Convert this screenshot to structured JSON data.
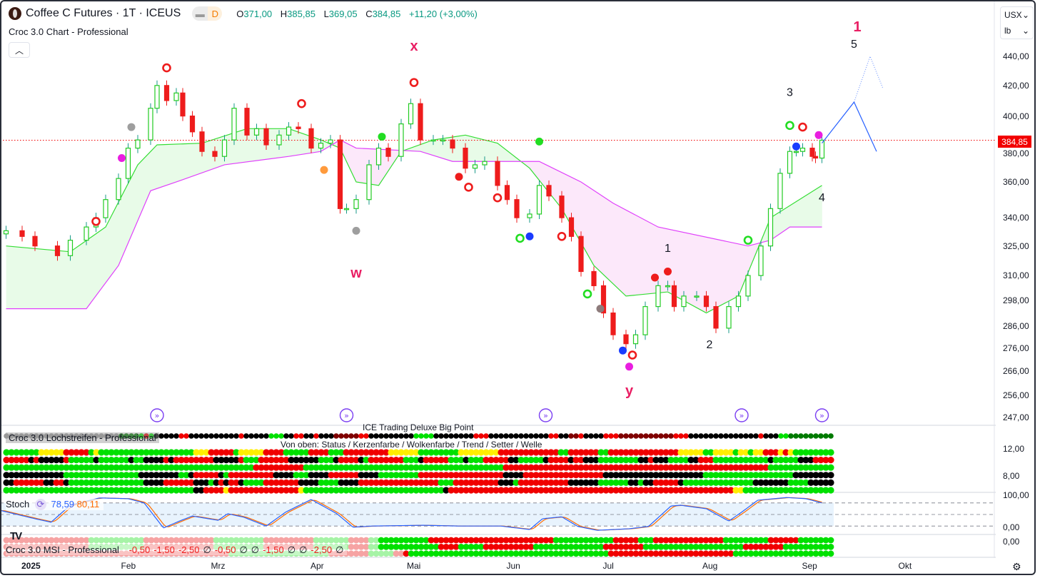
{
  "header": {
    "symbol": "Coffee C Futures · 1T · ICEUS",
    "badge": "D",
    "ohlc": {
      "o_label": "O",
      "o": "371,00",
      "h_label": "H",
      "h": "385,85",
      "l_label": "L",
      "l": "369,05",
      "c_label": "C",
      "c": "384,85",
      "change": "+11,20 (+3,00%)"
    },
    "indicator": "Croc 3.0 Chart - Professional",
    "collapse_icon": "chevron-up-icon"
  },
  "axis": {
    "currency": "USX",
    "unit": "lb",
    "price_ticks": [
      {
        "v": 440,
        "t": "440,00"
      },
      {
        "v": 420,
        "t": "420,00"
      },
      {
        "v": 400,
        "t": "400,00"
      },
      {
        "v": 380,
        "t": "380,00"
      },
      {
        "v": 360,
        "t": "360,00"
      },
      {
        "v": 340,
        "t": "340,00"
      },
      {
        "v": 325,
        "t": "325,00"
      },
      {
        "v": 310,
        "t": "310,00"
      },
      {
        "v": 298,
        "t": "298,00"
      },
      {
        "v": 286,
        "t": "286,00"
      },
      {
        "v": 276,
        "t": "276,00"
      },
      {
        "v": 266,
        "t": "266,00"
      },
      {
        "v": 256,
        "t": "256,00"
      },
      {
        "v": 247,
        "t": "247,00"
      }
    ],
    "current_price": "384,85",
    "current_price_value": 384.85,
    "loch_ticks": [
      "12,00",
      "8,00"
    ],
    "stoch_ticks": [
      "100,00",
      "0,00"
    ],
    "msi_ticks": [
      "0,00"
    ],
    "date_labels": [
      {
        "d": "2025-01-01",
        "t": "2025"
      },
      {
        "d": "2025-02-01",
        "t": "Feb"
      },
      {
        "d": "2025-03-01",
        "t": "Mrz"
      },
      {
        "d": "2025-04-01",
        "t": "Apr"
      },
      {
        "d": "2025-05-01",
        "t": "Mai"
      },
      {
        "d": "2025-06-01",
        "t": "Jun"
      },
      {
        "d": "2025-07-01",
        "t": "Jul"
      },
      {
        "d": "2025-08-01",
        "t": "Aug"
      },
      {
        "d": "2025-09-01",
        "t": "Sep"
      },
      {
        "d": "2025-10-01",
        "t": "Okt"
      }
    ]
  },
  "colors": {
    "up": "#22cc22",
    "down": "#ee1c1c",
    "wick_up": "#1a9a8a",
    "cloud_green": "#e8fbe8",
    "cloud_pink": "#fce8fa",
    "green_line": "#33dd33",
    "magenta_line": "#e040fb",
    "stoch_k": "#2962ff",
    "stoch_d": "#ff6d00",
    "accent_wave": "#e91e63",
    "projection": "#2962ff"
  },
  "chart_data": {
    "type": "candlestick",
    "yscale": "log",
    "ylim": [
      247,
      440
    ],
    "closes": [
      [
        "2024-12-25",
        333
      ],
      [
        "2024-12-30",
        330
      ],
      [
        "2025-01-03",
        325
      ],
      [
        "2025-01-10",
        320
      ],
      [
        "2025-01-14",
        328
      ],
      [
        "2025-01-19",
        335
      ],
      [
        "2025-01-22",
        340
      ],
      [
        "2025-01-25",
        350
      ],
      [
        "2025-01-29",
        362
      ],
      [
        "2025-02-01",
        380
      ],
      [
        "2025-02-04",
        385
      ],
      [
        "2025-02-08",
        405
      ],
      [
        "2025-02-10",
        420
      ],
      [
        "2025-02-13",
        410
      ],
      [
        "2025-02-16",
        415
      ],
      [
        "2025-02-18",
        400
      ],
      [
        "2025-02-21",
        390
      ],
      [
        "2025-02-24",
        378
      ],
      [
        "2025-02-28",
        375
      ],
      [
        "2025-03-03",
        385
      ],
      [
        "2025-03-06",
        405
      ],
      [
        "2025-03-10",
        388
      ],
      [
        "2025-03-13",
        392
      ],
      [
        "2025-03-16",
        382
      ],
      [
        "2025-03-20",
        388
      ],
      [
        "2025-03-23",
        393
      ],
      [
        "2025-03-26",
        392
      ],
      [
        "2025-03-30",
        380
      ],
      [
        "2025-04-02",
        383
      ],
      [
        "2025-04-05",
        385
      ],
      [
        "2025-04-08",
        345
      ],
      [
        "2025-04-10",
        345
      ],
      [
        "2025-04-13",
        350
      ],
      [
        "2025-04-17",
        370
      ],
      [
        "2025-04-20",
        380
      ],
      [
        "2025-04-23",
        375
      ],
      [
        "2025-04-27",
        395
      ],
      [
        "2025-04-30",
        408
      ],
      [
        "2025-05-03",
        385
      ],
      [
        "2025-05-07",
        385
      ],
      [
        "2025-05-10",
        385
      ],
      [
        "2025-05-13",
        380
      ],
      [
        "2025-05-17",
        368
      ],
      [
        "2025-05-20",
        370
      ],
      [
        "2025-05-23",
        372
      ],
      [
        "2025-05-27",
        358
      ],
      [
        "2025-05-30",
        350
      ],
      [
        "2025-06-02",
        340
      ],
      [
        "2025-06-06",
        342
      ],
      [
        "2025-06-09",
        358
      ],
      [
        "2025-06-12",
        352
      ],
      [
        "2025-06-16",
        340
      ],
      [
        "2025-06-19",
        330
      ],
      [
        "2025-06-22",
        312
      ],
      [
        "2025-06-26",
        305
      ],
      [
        "2025-06-29",
        292
      ],
      [
        "2025-07-02",
        282
      ],
      [
        "2025-07-06",
        278
      ],
      [
        "2025-07-09",
        282
      ],
      [
        "2025-07-12",
        295
      ],
      [
        "2025-07-16",
        305
      ],
      [
        "2025-07-19",
        305
      ],
      [
        "2025-07-21",
        295
      ],
      [
        "2025-07-24",
        300
      ],
      [
        "2025-07-28",
        300
      ],
      [
        "2025-07-31",
        295
      ],
      [
        "2025-08-03",
        285
      ],
      [
        "2025-08-07",
        295
      ],
      [
        "2025-08-10",
        300
      ],
      [
        "2025-08-13",
        310
      ],
      [
        "2025-08-17",
        325
      ],
      [
        "2025-08-20",
        345
      ],
      [
        "2025-08-23",
        365
      ],
      [
        "2025-08-26",
        378
      ],
      [
        "2025-08-28",
        378
      ],
      [
        "2025-08-30",
        380
      ],
      [
        "2025-09-02",
        375
      ],
      [
        "2025-09-03",
        374
      ],
      [
        "2025-09-05",
        384.85
      ]
    ],
    "green_line": [
      [
        "2024-12-25",
        325
      ],
      [
        "2025-01-14",
        322
      ],
      [
        "2025-01-25",
        335
      ],
      [
        "2025-02-04",
        370
      ],
      [
        "2025-02-10",
        382
      ],
      [
        "2025-02-24",
        383
      ],
      [
        "2025-03-10",
        392
      ],
      [
        "2025-03-23",
        392
      ],
      [
        "2025-04-02",
        385
      ],
      [
        "2025-04-08",
        380
      ],
      [
        "2025-04-13",
        360
      ],
      [
        "2025-04-20",
        358
      ],
      [
        "2025-04-27",
        378
      ],
      [
        "2025-05-07",
        385
      ],
      [
        "2025-05-17",
        388
      ],
      [
        "2025-05-27",
        383
      ],
      [
        "2025-06-06",
        368
      ],
      [
        "2025-06-16",
        345
      ],
      [
        "2025-06-26",
        315
      ],
      [
        "2025-07-06",
        300
      ],
      [
        "2025-07-19",
        302
      ],
      [
        "2025-07-31",
        292
      ],
      [
        "2025-08-10",
        300
      ],
      [
        "2025-08-20",
        340
      ],
      [
        "2025-09-05",
        358
      ]
    ],
    "magenta_line": [
      [
        "2024-12-25",
        294
      ],
      [
        "2025-01-19",
        294
      ],
      [
        "2025-01-29",
        315
      ],
      [
        "2025-02-08",
        355
      ],
      [
        "2025-02-16",
        360
      ],
      [
        "2025-03-03",
        370
      ],
      [
        "2025-03-23",
        375
      ],
      [
        "2025-04-02",
        378
      ],
      [
        "2025-04-08",
        385
      ],
      [
        "2025-04-13",
        380
      ],
      [
        "2025-05-03",
        378
      ],
      [
        "2025-05-13",
        372
      ],
      [
        "2025-06-09",
        372
      ],
      [
        "2025-06-22",
        360
      ],
      [
        "2025-07-02",
        348
      ],
      [
        "2025-07-16",
        335
      ],
      [
        "2025-08-13",
        325
      ],
      [
        "2025-08-20",
        328
      ],
      [
        "2025-08-26",
        335
      ],
      [
        "2025-09-05",
        335
      ]
    ],
    "markers": [
      {
        "d": "2025-01-22",
        "p": 338,
        "type": "ring",
        "color": "#ee1c1c"
      },
      {
        "d": "2025-01-30",
        "p": 374,
        "type": "dot",
        "color": "#e91ee0"
      },
      {
        "d": "2025-02-02",
        "p": 393,
        "type": "dot",
        "color": "#9e9e9e"
      },
      {
        "d": "2025-02-13",
        "p": 432,
        "type": "ring",
        "color": "#ee1c1c"
      },
      {
        "d": "2025-03-27",
        "p": 408,
        "type": "ring",
        "color": "#ee1c1c"
      },
      {
        "d": "2025-04-03",
        "p": 367,
        "type": "dot",
        "color": "#ff9a3c"
      },
      {
        "d": "2025-04-13",
        "p": 333,
        "type": "dot",
        "color": "#9e9e9e"
      },
      {
        "d": "2025-04-21",
        "p": 387,
        "type": "dot",
        "color": "#22dd22"
      },
      {
        "d": "2025-05-01",
        "p": 422,
        "type": "ring",
        "color": "#ee1c1c"
      },
      {
        "d": "2025-05-15",
        "p": 363,
        "type": "dot",
        "color": "#ee1c1c"
      },
      {
        "d": "2025-05-18",
        "p": 357,
        "type": "ring",
        "color": "#ee1c1c"
      },
      {
        "d": "2025-05-27",
        "p": 351,
        "type": "ring",
        "color": "#ee1c1c"
      },
      {
        "d": "2025-06-03",
        "p": 329,
        "type": "ring",
        "color": "#22dd22"
      },
      {
        "d": "2025-06-06",
        "p": 330,
        "type": "dot",
        "color": "#1a3cff"
      },
      {
        "d": "2025-06-09",
        "p": 384,
        "type": "dot",
        "color": "#22dd22"
      },
      {
        "d": "2025-06-16",
        "p": 330,
        "type": "ring",
        "color": "#ee1c1c"
      },
      {
        "d": "2025-06-24",
        "p": 301,
        "type": "ring",
        "color": "#22dd22"
      },
      {
        "d": "2025-06-28",
        "p": 294,
        "type": "dot",
        "color": "#8d7b7b"
      },
      {
        "d": "2025-07-05",
        "p": 275,
        "type": "dot",
        "color": "#1a3cff"
      },
      {
        "d": "2025-07-07",
        "p": 268,
        "type": "dot",
        "color": "#e91ee0"
      },
      {
        "d": "2025-07-08",
        "p": 273,
        "type": "ring",
        "color": "#ee1c1c"
      },
      {
        "d": "2025-07-15",
        "p": 309,
        "type": "dot",
        "color": "#ee1c1c"
      },
      {
        "d": "2025-07-19",
        "p": 312,
        "type": "dot",
        "color": "#ee1c1c"
      },
      {
        "d": "2025-08-13",
        "p": 328,
        "type": "ring",
        "color": "#22dd22"
      },
      {
        "d": "2025-08-26",
        "p": 394,
        "type": "ring",
        "color": "#22dd22"
      },
      {
        "d": "2025-08-28",
        "p": 381,
        "type": "dot",
        "color": "#1a3cff"
      },
      {
        "d": "2025-08-30",
        "p": 393,
        "type": "ring",
        "color": "#ee1c1c"
      },
      {
        "d": "2025-09-04",
        "p": 388,
        "type": "dot",
        "color": "#e91ee0"
      }
    ],
    "wave_labels": [
      {
        "t": "x",
        "d": "2025-05-01",
        "p": 444,
        "color": "#e91e63"
      },
      {
        "t": "w",
        "d": "2025-04-13",
        "p": 309,
        "color": "#e91e63"
      },
      {
        "t": "y",
        "d": "2025-07-07",
        "p": 256,
        "color": "#e91e63"
      },
      {
        "t": "1",
        "d": "2025-09-16",
        "p": 458,
        "color": "#e91e63"
      },
      {
        "t": "5",
        "d": "2025-09-15",
        "p": 446,
        "color": "#131722"
      },
      {
        "t": "3",
        "d": "2025-08-26",
        "p": 413,
        "color": "#131722"
      },
      {
        "t": "4",
        "d": "2025-09-05",
        "p": 349,
        "color": "#131722"
      },
      {
        "t": "1",
        "d": "2025-07-19",
        "p": 322,
        "color": "#131722"
      },
      {
        "t": "2",
        "d": "2025-08-01",
        "p": 276,
        "color": "#131722"
      }
    ],
    "projection_solid": [
      [
        "2025-09-05",
        383
      ],
      [
        "2025-09-15",
        409
      ],
      [
        "2025-09-22",
        378
      ]
    ],
    "projection_dotted": [
      [
        "2025-09-15",
        409
      ],
      [
        "2025-09-20",
        440
      ],
      [
        "2025-09-24",
        418
      ]
    ],
    "events": [
      "2025-02-10",
      "2025-04-10",
      "2025-06-11",
      "2025-08-11",
      "2025-09-05"
    ],
    "stoch_k": [
      [
        "2024-12-23",
        61
      ],
      [
        "2025-01-03",
        39
      ],
      [
        "2025-01-08",
        30
      ],
      [
        "2025-01-14",
        74
      ],
      [
        "2025-01-23",
        93
      ],
      [
        "2025-02-01",
        91
      ],
      [
        "2025-02-06",
        80
      ],
      [
        "2025-02-12",
        15
      ],
      [
        "2025-02-17",
        33
      ],
      [
        "2025-02-21",
        46
      ],
      [
        "2025-02-26",
        39
      ],
      [
        "2025-03-01",
        35
      ],
      [
        "2025-03-04",
        52
      ],
      [
        "2025-03-09",
        43
      ],
      [
        "2025-03-16",
        20
      ],
      [
        "2025-03-22",
        56
      ],
      [
        "2025-03-30",
        89
      ],
      [
        "2025-04-07",
        52
      ],
      [
        "2025-04-12",
        17
      ],
      [
        "2025-04-18",
        20
      ],
      [
        "2025-05-04",
        22
      ],
      [
        "2025-05-15",
        20
      ],
      [
        "2025-05-28",
        20
      ],
      [
        "2025-06-06",
        11
      ],
      [
        "2025-06-10",
        39
      ],
      [
        "2025-06-16",
        44
      ],
      [
        "2025-06-21",
        19
      ],
      [
        "2025-06-27",
        9
      ],
      [
        "2025-07-07",
        13
      ],
      [
        "2025-07-13",
        19
      ],
      [
        "2025-07-20",
        72
      ],
      [
        "2025-07-23",
        74
      ],
      [
        "2025-07-31",
        65
      ],
      [
        "2025-08-07",
        33
      ],
      [
        "2025-08-11",
        56
      ],
      [
        "2025-08-16",
        87
      ],
      [
        "2025-08-25",
        94
      ],
      [
        "2025-08-31",
        91
      ],
      [
        "2025-09-05",
        80
      ]
    ],
    "stoch_levels": [
      80,
      50,
      20
    ]
  },
  "loch": {
    "title_top": "ICE Trading Deluxe Big Point",
    "title": "Croc 3.0 Lochstreifen - Professional",
    "legend": "Von oben: Status / Kerzenfarbe / Wolkenfarbe / Trend / Setter / Welle",
    "top_row": "G23 D4 g1 r1 g1 k5 r2 k10 r1 k5 g3 k2 r2 k2 r1 k3 d5 r2 k9 g4 k8 r3 k12 r2 k2 d2 r1 k4 r3 d11 r3 k14 r1 k3 g2 D12 g2 k2 g1",
    "rows": [
      "g7 y5 r5 g1 y1 g19 y3 r5 g1 y5 r4 g5 r4 g3 r9 y6 g8 y8 r12 g2 r6 g2 r14 y5 g2 y4 g1 y2 g1 y2 r3 y1 r1 y1 g26 y4 g1",
      "r5 k1 r1 k5 r1 g5 k1 g6 k1 g2 k4 r1 k1 r8 k5 r1 g3 r6 k6 g3 k1 r4 k1 g1 r7 g3 k1 r5 g3 k1 g3 r5 k2 g5 k1 r4 k1 r2 k3 g8 k2 r1 k3 g4 k2 r3 g11 k1 g5 k3 r8",
      "g50 r10 g40 r53 g13",
      "k12 g15 k8 g2 k1 r5 k1 g1 r9 k4 g3 k4 r6 k4 g8 r10 r7 k4 r16 k20 g18 k5",
      "k2 r6 k2 r2 k1 g15 k4 r6 k3 g1 k1 r1 k1 r2 k1 g4 r7 k4 g4 k4 r6 r10 g3 r1 r8 k3 g1 r10 k6 g6 k2 g1 k2 r5 k1 g14 k7 g4 k5",
      "g38 k2 r4 y1 r14 y1 g28 k1 r57 y2 g18"
    ]
  },
  "stoch": {
    "label": "Stoch",
    "k": "78,59",
    "d": "80,11",
    "icon": "refresh-icon"
  },
  "msi": {
    "label": "Croc 3.0 MSI - Professional",
    "values": [
      {
        "t": "-0,50",
        "c": "#ee1c1c"
      },
      {
        "t": "-1,50",
        "c": "#ee1c1c"
      },
      {
        "t": "-2,50",
        "c": "#ee1c1c"
      },
      {
        "t": "∅",
        "c": "#131722"
      },
      {
        "t": "-0,50",
        "c": "#ee1c1c"
      },
      {
        "t": "∅",
        "c": "#131722"
      },
      {
        "t": "∅",
        "c": "#131722"
      },
      {
        "t": "-1,50",
        "c": "#ee1c1c"
      },
      {
        "t": "∅",
        "c": "#131722"
      },
      {
        "t": "∅",
        "c": "#131722"
      },
      {
        "t": "-2,50",
        "c": "#ee1c1c"
      },
      {
        "t": "∅",
        "c": "#131722"
      }
    ],
    "rows": [
      "p17 q11 p14 q10 p10 q7 p4 q2 g10 r25 g12 r5 g3 r14 g9 r6 g8 r10 g1 r6 g4 r16",
      "p17 q11 p14 q10 p10 q7 p4 q2 g12 r4 g5 r10 g14 r8 g20 r8 g20 r22 g12 r8",
      "p45 q20 p8 q5 p2 r1 g40 r25 g40 r20 g8 r10"
    ]
  },
  "footer": {
    "settings_icon": "gear-icon"
  }
}
